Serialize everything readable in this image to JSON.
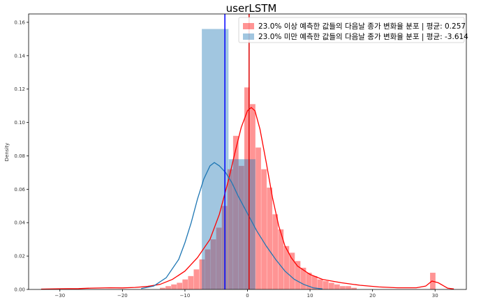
{
  "chart_data": {
    "type": "histogram",
    "title": "userLSTM",
    "xlabel": "",
    "ylabel": "Density",
    "xlim": [
      -35,
      35
    ],
    "ylim": [
      0,
      0.165
    ],
    "xticks": [
      -30,
      -20,
      -10,
      0,
      10,
      20,
      30
    ],
    "xtick_labels": [
      "−30",
      "−20",
      "−10",
      "0",
      "10",
      "20",
      "30"
    ],
    "yticks": [
      0.0,
      0.02,
      0.04,
      0.06,
      0.08,
      0.1,
      0.12,
      0.14,
      0.16
    ],
    "ytick_labels": [
      "0.00",
      "0.02",
      "0.04",
      "0.06",
      "0.08",
      "0.10",
      "0.12",
      "0.14",
      "0.16"
    ],
    "grid": false,
    "legend_position": "top-right",
    "series": [
      {
        "name": "23.0% 이상 예측한 값들의 다음날 종가 변화율 분포 | 평균: 0.257",
        "color": "#ff0000",
        "mean": 0.257,
        "bin_width": 0.9,
        "bins": [
          [
            -14.0,
            0.001
          ],
          [
            -13.1,
            0.002
          ],
          [
            -12.2,
            0.003
          ],
          [
            -11.3,
            0.004
          ],
          [
            -10.4,
            0.006
          ],
          [
            -9.5,
            0.008
          ],
          [
            -8.6,
            0.012
          ],
          [
            -7.7,
            0.018
          ],
          [
            -6.8,
            0.024
          ],
          [
            -5.9,
            0.03
          ],
          [
            -5.0,
            0.037
          ],
          [
            -4.1,
            0.05
          ],
          [
            -3.2,
            0.072
          ],
          [
            -2.3,
            0.092
          ],
          [
            -1.4,
            0.074
          ],
          [
            -0.5,
            0.121
          ],
          [
            0.4,
            0.111
          ],
          [
            1.3,
            0.085
          ],
          [
            2.2,
            0.072
          ],
          [
            3.1,
            0.061
          ],
          [
            4.0,
            0.045
          ],
          [
            4.9,
            0.036
          ],
          [
            5.8,
            0.026
          ],
          [
            6.7,
            0.022
          ],
          [
            7.6,
            0.017
          ],
          [
            8.5,
            0.013
          ],
          [
            9.4,
            0.01
          ],
          [
            10.3,
            0.008
          ],
          [
            11.2,
            0.006
          ],
          [
            12.1,
            0.005
          ],
          [
            13.0,
            0.004
          ],
          [
            13.9,
            0.003
          ],
          [
            14.8,
            0.002
          ],
          [
            15.7,
            0.002
          ],
          [
            16.6,
            0.001
          ],
          [
            29.2,
            0.01
          ]
        ],
        "kde": [
          [
            -33,
            0.0002
          ],
          [
            -30,
            0.0004
          ],
          [
            -27,
            0.0005
          ],
          [
            -25,
            0.0008
          ],
          [
            -22,
            0.001
          ],
          [
            -20,
            0.0009
          ],
          [
            -18,
            0.0012
          ],
          [
            -16,
            0.0018
          ],
          [
            -14,
            0.003
          ],
          [
            -12,
            0.006
          ],
          [
            -10,
            0.011
          ],
          [
            -8,
            0.019
          ],
          [
            -6,
            0.03
          ],
          [
            -4.5,
            0.045
          ],
          [
            -3,
            0.066
          ],
          [
            -2,
            0.082
          ],
          [
            -1,
            0.097
          ],
          [
            0,
            0.107
          ],
          [
            0.6,
            0.109
          ],
          [
            1.2,
            0.107
          ],
          [
            2,
            0.096
          ],
          [
            3,
            0.076
          ],
          [
            4,
            0.055
          ],
          [
            5,
            0.038
          ],
          [
            6,
            0.026
          ],
          [
            7,
            0.019
          ],
          [
            8,
            0.014
          ],
          [
            10,
            0.009
          ],
          [
            12,
            0.006
          ],
          [
            15,
            0.004
          ],
          [
            18,
            0.0025
          ],
          [
            21,
            0.0015
          ],
          [
            24,
            0.001
          ],
          [
            27,
            0.001
          ],
          [
            28.5,
            0.002
          ],
          [
            29.5,
            0.005
          ],
          [
            30.5,
            0.004
          ],
          [
            32,
            0.0008
          ],
          [
            33,
            0.0003
          ]
        ]
      },
      {
        "name": "23.0% 미만 예측한 값들의 다음날 종가 변화율 분포 | 평균: -3.614",
        "color": "#1f77b4",
        "mean": -3.614,
        "bin_width": 4.3,
        "bins": [
          [
            -7.3,
            0.156
          ],
          [
            -3.0,
            0.078
          ]
        ],
        "kde": [
          [
            -17,
            0.0005
          ],
          [
            -15,
            0.002
          ],
          [
            -13,
            0.007
          ],
          [
            -11,
            0.018
          ],
          [
            -10,
            0.028
          ],
          [
            -9,
            0.04
          ],
          [
            -8,
            0.054
          ],
          [
            -7,
            0.066
          ],
          [
            -6,
            0.074
          ],
          [
            -5.3,
            0.076
          ],
          [
            -4.5,
            0.074
          ],
          [
            -3.5,
            0.07
          ],
          [
            -2.5,
            0.064
          ],
          [
            -1.5,
            0.056
          ],
          [
            -0.5,
            0.049
          ],
          [
            0.5,
            0.042
          ],
          [
            1.5,
            0.035
          ],
          [
            3,
            0.026
          ],
          [
            4.5,
            0.018
          ],
          [
            6,
            0.011
          ],
          [
            7.5,
            0.006
          ],
          [
            9,
            0.003
          ],
          [
            10.5,
            0.001
          ],
          [
            12,
            0.0003
          ]
        ]
      }
    ]
  }
}
